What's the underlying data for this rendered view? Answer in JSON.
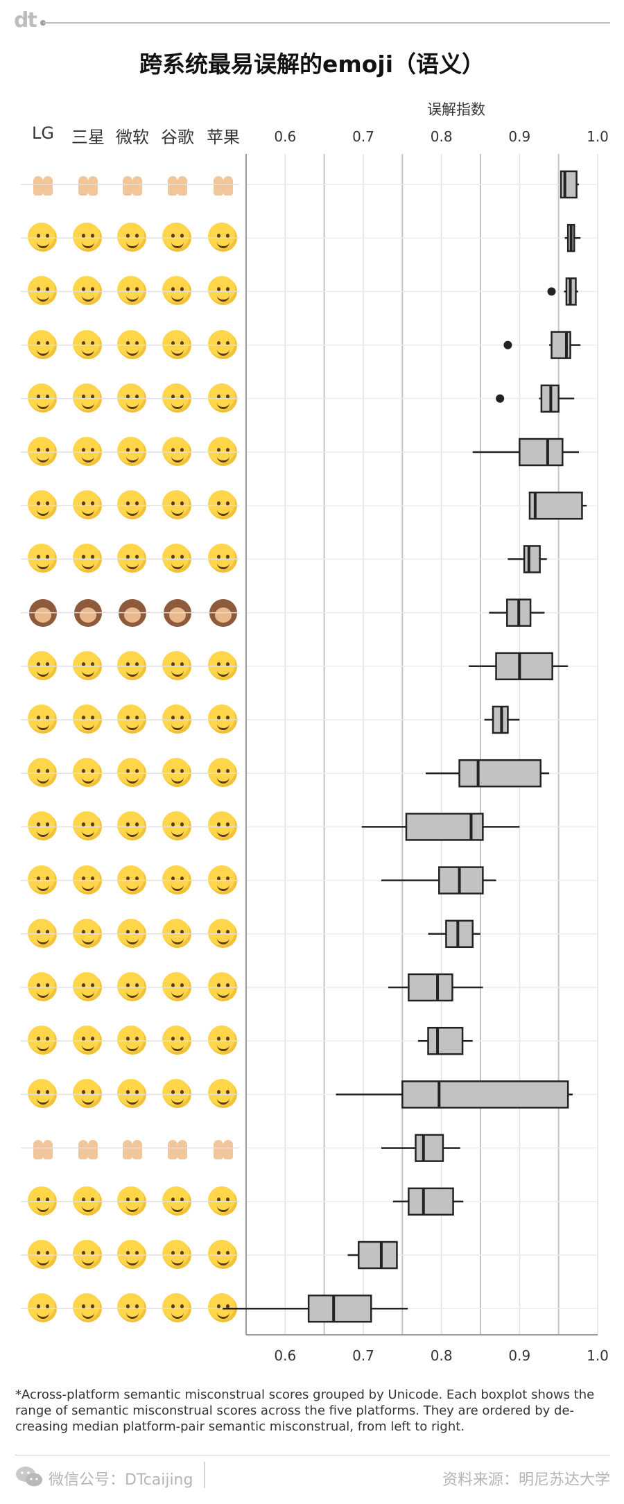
{
  "header": {
    "logo": "dt",
    "title": "跨系统最易误解的emoji（语义）"
  },
  "platforms": [
    "LG",
    "三星",
    "微软",
    "谷歌",
    "苹果"
  ],
  "rows": [
    {
      "icon": "raising-hands-icon",
      "kind": "hands"
    },
    {
      "icon": "smirking-face-icon",
      "kind": "face"
    },
    {
      "icon": "unamused-face-icon",
      "kind": "face"
    },
    {
      "icon": "face-savoring-food-icon",
      "kind": "face"
    },
    {
      "icon": "squinting-laughing-face-icon",
      "kind": "face"
    },
    {
      "icon": "grinning-smiling-eyes-face-icon",
      "kind": "face"
    },
    {
      "icon": "relieved-face-icon",
      "kind": "face"
    },
    {
      "icon": "grinning-sweat-face-icon",
      "kind": "face"
    },
    {
      "icon": "see-no-evil-monkey-icon",
      "kind": "monkey"
    },
    {
      "icon": "weary-face-icon",
      "kind": "face"
    },
    {
      "icon": "winking-face-icon",
      "kind": "face"
    },
    {
      "icon": "screaming-in-fear-face-icon",
      "kind": "face"
    },
    {
      "icon": "slightly-smiling-face-icon",
      "kind": "face"
    },
    {
      "icon": "smiling-eyes-face-icon",
      "kind": "face"
    },
    {
      "icon": "loudly-crying-face-icon",
      "kind": "face"
    },
    {
      "icon": "sunglasses-face-icon",
      "kind": "face"
    },
    {
      "icon": "tears-of-joy-face-icon",
      "kind": "face"
    },
    {
      "icon": "sleeping-face-icon",
      "kind": "face"
    },
    {
      "icon": "folded-hands-icon",
      "kind": "hands"
    },
    {
      "icon": "kissing-heart-face-icon",
      "kind": "face"
    },
    {
      "icon": "crying-face-icon",
      "kind": "face"
    },
    {
      "icon": "heart-eyes-face-icon",
      "kind": "face"
    }
  ],
  "chart_data": {
    "type": "boxplot",
    "title": "跨系统最易误解的emoji（语义）",
    "xlabel": "误解指数",
    "xlim": [
      0.55,
      1.0
    ],
    "xticks": [
      "0.6",
      "0.7",
      "0.8",
      "0.9",
      "1.0"
    ],
    "grid": true,
    "series": [
      {
        "wlo": 0.953,
        "q1": 0.953,
        "med": 0.958,
        "q3": 0.973,
        "whi": 0.976,
        "outliers": []
      },
      {
        "wlo": 0.958,
        "q1": 0.962,
        "med": 0.966,
        "q3": 0.97,
        "whi": 0.978,
        "outliers": []
      },
      {
        "wlo": 0.957,
        "q1": 0.96,
        "med": 0.965,
        "q3": 0.972,
        "whi": 0.975,
        "outliers": [
          0.941
        ]
      },
      {
        "wlo": 0.938,
        "q1": 0.941,
        "med": 0.96,
        "q3": 0.965,
        "whi": 0.978,
        "outliers": [
          0.885
        ]
      },
      {
        "wlo": 0.925,
        "q1": 0.928,
        "med": 0.94,
        "q3": 0.95,
        "whi": 0.97,
        "outliers": [
          0.875
        ]
      },
      {
        "wlo": 0.84,
        "q1": 0.9,
        "med": 0.936,
        "q3": 0.955,
        "whi": 0.976,
        "outliers": []
      },
      {
        "wlo": 0.913,
        "q1": 0.913,
        "med": 0.92,
        "q3": 0.98,
        "whi": 0.986,
        "outliers": []
      },
      {
        "wlo": 0.885,
        "q1": 0.906,
        "med": 0.912,
        "q3": 0.926,
        "whi": 0.935,
        "outliers": []
      },
      {
        "wlo": 0.861,
        "q1": 0.884,
        "med": 0.899,
        "q3": 0.914,
        "whi": 0.932,
        "outliers": []
      },
      {
        "wlo": 0.835,
        "q1": 0.87,
        "med": 0.9,
        "q3": 0.942,
        "whi": 0.962,
        "outliers": []
      },
      {
        "wlo": 0.855,
        "q1": 0.866,
        "med": 0.877,
        "q3": 0.885,
        "whi": 0.9,
        "outliers": []
      },
      {
        "wlo": 0.78,
        "q1": 0.823,
        "med": 0.847,
        "q3": 0.927,
        "whi": 0.938,
        "outliers": []
      },
      {
        "wlo": 0.698,
        "q1": 0.755,
        "med": 0.838,
        "q3": 0.853,
        "whi": 0.9,
        "outliers": []
      },
      {
        "wlo": 0.723,
        "q1": 0.797,
        "med": 0.823,
        "q3": 0.853,
        "whi": 0.87,
        "outliers": []
      },
      {
        "wlo": 0.783,
        "q1": 0.806,
        "med": 0.821,
        "q3": 0.84,
        "whi": 0.85,
        "outliers": []
      },
      {
        "wlo": 0.732,
        "q1": 0.758,
        "med": 0.795,
        "q3": 0.814,
        "whi": 0.853,
        "outliers": []
      },
      {
        "wlo": 0.77,
        "q1": 0.783,
        "med": 0.795,
        "q3": 0.827,
        "whi": 0.84,
        "outliers": []
      },
      {
        "wlo": 0.665,
        "q1": 0.75,
        "med": 0.797,
        "q3": 0.962,
        "whi": 0.968,
        "outliers": []
      },
      {
        "wlo": 0.723,
        "q1": 0.767,
        "med": 0.777,
        "q3": 0.802,
        "whi": 0.824,
        "outliers": []
      },
      {
        "wlo": 0.738,
        "q1": 0.758,
        "med": 0.777,
        "q3": 0.815,
        "whi": 0.828,
        "outliers": []
      },
      {
        "wlo": 0.68,
        "q1": 0.694,
        "med": 0.723,
        "q3": 0.743,
        "whi": 0.743,
        "outliers": []
      },
      {
        "wlo": 0.52,
        "q1": 0.63,
        "med": 0.662,
        "q3": 0.71,
        "whi": 0.757,
        "outliers": []
      }
    ]
  },
  "footnote": "*Across-platform semantic misconstrual scores grouped by Unicode. Each boxplot shows the range of semantic misconstrual scores across the five platforms. They are ordered by de­creasing median platform-pair semantic misconstrual, from left to right.",
  "footer": {
    "wechat": "微信公号：DTcaijing",
    "source": "资料来源：明尼苏达大学"
  }
}
